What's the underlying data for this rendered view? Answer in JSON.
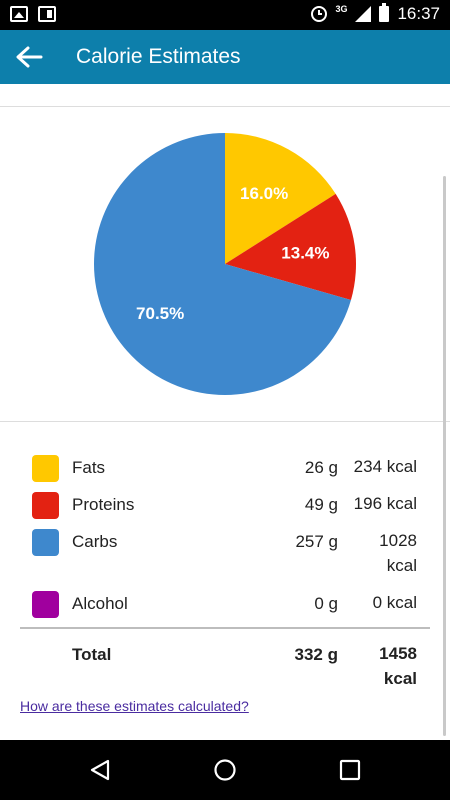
{
  "status_bar": {
    "network": "3G",
    "time": "16:37",
    "icons": [
      "gallery-icon",
      "flipboard-icon",
      "alarm-icon",
      "signal-icon",
      "battery-icon"
    ]
  },
  "app_bar": {
    "title": "Calorie Estimates",
    "back_icon": "arrow-left-icon"
  },
  "colors": {
    "appbar": "#0d7fab",
    "fats": "#FFC800",
    "proteins": "#E32212",
    "carbs": "#3E88CD",
    "alcohol": "#A0009E"
  },
  "chart_data": {
    "type": "pie",
    "slices": [
      {
        "name": "Fats",
        "value": 16.0,
        "label": "16.0%",
        "color": "#FFC800"
      },
      {
        "name": "Proteins",
        "value": 13.4,
        "label": "13.4%",
        "color": "#E32212"
      },
      {
        "name": "Carbs",
        "value": 70.5,
        "label": "70.5%",
        "color": "#3E88CD"
      },
      {
        "name": "Alcohol",
        "value": 0.0,
        "label": "",
        "color": "#A0009E"
      }
    ]
  },
  "legend": {
    "rows": [
      {
        "name": "Fats",
        "grams": "26 g",
        "kcal": "234 kcal"
      },
      {
        "name": "Proteins",
        "grams": "49 g",
        "kcal": "196 kcal"
      },
      {
        "name": "Carbs",
        "grams": "257 g",
        "kcal_line1": "1028",
        "kcal_line2": "kcal"
      },
      {
        "name": "Alcohol",
        "grams": "0 g",
        "kcal": "0 kcal"
      }
    ],
    "total": {
      "label": "Total",
      "grams": "332 g",
      "kcal_line1": "1458",
      "kcal_line2": "kcal"
    }
  },
  "help_link": "How are these estimates calculated?"
}
